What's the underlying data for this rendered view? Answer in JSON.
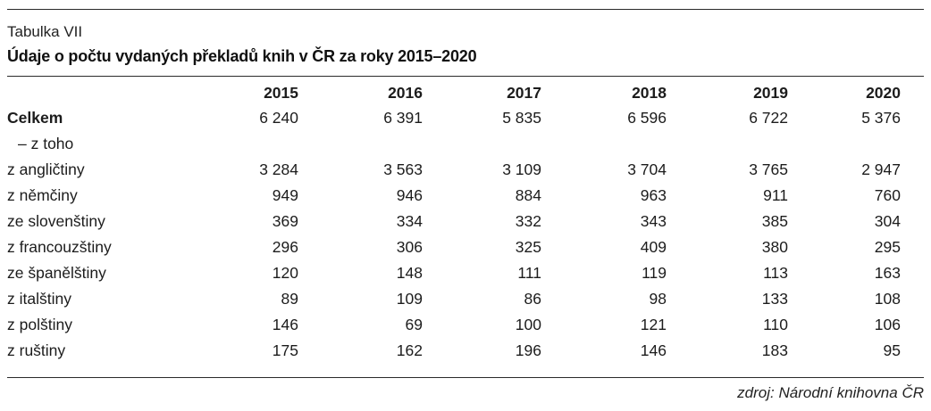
{
  "caption": {
    "label": "Tabulka VII",
    "title": "Údaje o počtu vydaných překladů knih v ČR za roky 2015–2020"
  },
  "table": {
    "years": [
      "2015",
      "2016",
      "2017",
      "2018",
      "2019",
      "2020"
    ],
    "total": {
      "label": "Celkem",
      "values": [
        "6 240",
        "6 391",
        "5 835",
        "6 596",
        "6 722",
        "5 376"
      ]
    },
    "subheading": "– z toho",
    "rows": [
      {
        "label": "z angličtiny",
        "values": [
          "3 284",
          "3 563",
          "3 109",
          "3 704",
          "3 765",
          "2 947"
        ]
      },
      {
        "label": "z němčiny",
        "values": [
          "949",
          "946",
          "884",
          "963",
          "911",
          "760"
        ]
      },
      {
        "label": "ze slovenštiny",
        "values": [
          "369",
          "334",
          "332",
          "343",
          "385",
          "304"
        ]
      },
      {
        "label": "z francouzštiny",
        "values": [
          "296",
          "306",
          "325",
          "409",
          "380",
          "295"
        ]
      },
      {
        "label": "ze španělštiny",
        "values": [
          "120",
          "148",
          "111",
          "119",
          "113",
          "163"
        ]
      },
      {
        "label": "z italštiny",
        "values": [
          "89",
          "109",
          "86",
          "98",
          "133",
          "108"
        ]
      },
      {
        "label": "z polštiny",
        "values": [
          "146",
          "69",
          "100",
          "121",
          "110",
          "106"
        ]
      },
      {
        "label": "z ruštiny",
        "values": [
          "175",
          "162",
          "196",
          "146",
          "183",
          "95"
        ]
      }
    ]
  },
  "source": "zdroj: Národní knihovna ČR"
}
